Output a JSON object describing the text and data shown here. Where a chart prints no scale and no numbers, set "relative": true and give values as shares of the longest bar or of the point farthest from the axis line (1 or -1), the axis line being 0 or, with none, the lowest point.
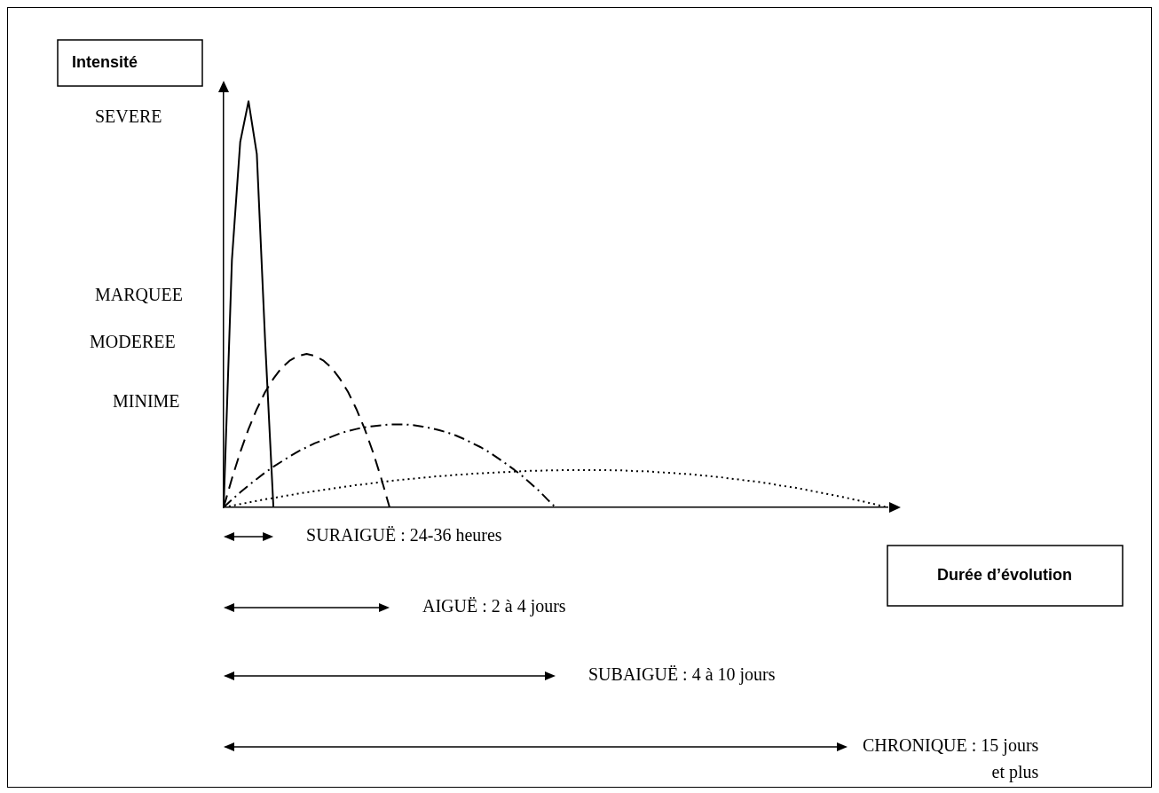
{
  "chart_data": {
    "type": "line",
    "relative": true,
    "categories": [
      null,
      null,
      null,
      null,
      null,
      null,
      null,
      null,
      null,
      null,
      null,
      null,
      null,
      null,
      null,
      null,
      null,
      null,
      null,
      null,
      null,
      null,
      null,
      null,
      null,
      null,
      null,
      null,
      null,
      null,
      null,
      null,
      null,
      null,
      null,
      null,
      null,
      null,
      null,
      null,
      null,
      null,
      null,
      null,
      null,
      null,
      null,
      null,
      null,
      null,
      null,
      null,
      null,
      null,
      null,
      null,
      null,
      null,
      null,
      null,
      null,
      null,
      null,
      null,
      null,
      null,
      null,
      null,
      null,
      null,
      null,
      null,
      null,
      null,
      null,
      null,
      null,
      null,
      null,
      null,
      null
    ],
    "grid": false,
    "legend": false,
    "marker": "none",
    "series": [
      {
        "color": "#000000",
        "line_style": "solid",
        "values": [
          0,
          0.61,
          0.9,
          1,
          0.87,
          0.41,
          0,
          null,
          null,
          null,
          null,
          null,
          null,
          null,
          null,
          null,
          null,
          null,
          null,
          null,
          null,
          null,
          null,
          null,
          null,
          null,
          null,
          null,
          null,
          null,
          null,
          null,
          null,
          null,
          null,
          null,
          null,
          null,
          null,
          null,
          null,
          null,
          null,
          null,
          null,
          null,
          null,
          null,
          null,
          null,
          null,
          null,
          null,
          null,
          null,
          null,
          null,
          null,
          null,
          null,
          null,
          null,
          null,
          null,
          null,
          null,
          null,
          null,
          null,
          null,
          null,
          null,
          null,
          null,
          null,
          null,
          null,
          null,
          null,
          null,
          null
        ]
      },
      {
        "color": "#000000",
        "line_style": "dashed",
        "values": [
          0,
          0.071,
          0.136,
          0.193,
          0.242,
          0.284,
          0.317,
          0.344,
          0.362,
          0.373,
          0.378,
          0.373,
          0.362,
          0.344,
          0.317,
          0.284,
          0.242,
          0.193,
          0.136,
          0.071,
          0,
          null,
          null,
          null,
          null,
          null,
          null,
          null,
          null,
          null,
          null,
          null,
          null,
          null,
          null,
          null,
          null,
          null,
          null,
          null,
          null,
          null,
          null,
          null,
          null,
          null,
          null,
          null,
          null,
          null,
          null,
          null,
          null,
          null,
          null,
          null,
          null,
          null,
          null,
          null,
          null,
          null,
          null,
          null,
          null,
          null,
          null,
          null,
          null,
          null,
          null,
          null,
          null,
          null,
          null,
          null,
          null,
          null,
          null,
          null,
          null
        ]
      },
      {
        "color": "#000000",
        "line_style": "dashdot",
        "values": [
          0,
          0.019,
          0.037,
          0.054,
          0.07,
          0.086,
          0.1,
          0.113,
          0.126,
          0.138,
          0.148,
          0.158,
          0.166,
          0.174,
          0.182,
          0.188,
          0.193,
          0.197,
          0.2,
          0.202,
          0.204,
          0.204,
          0.204,
          0.202,
          0.199,
          0.195,
          0.19,
          0.184,
          0.177,
          0.168,
          0.158,
          0.148,
          0.136,
          0.122,
          0.108,
          0.093,
          0.077,
          0.059,
          0.041,
          0.02,
          0,
          null,
          null,
          null,
          null,
          null,
          null,
          null,
          null,
          null,
          null,
          null,
          null,
          null,
          null,
          null,
          null,
          null,
          null,
          null,
          null,
          null,
          null,
          null,
          null,
          null,
          null,
          null,
          null,
          null,
          null,
          null,
          null,
          null,
          null,
          null,
          null,
          null,
          null,
          null,
          null
        ]
      },
      {
        "color": "#000000",
        "line_style": "dotted",
        "values": [
          0,
          0.004,
          0.008,
          0.012,
          0.016,
          0.02,
          0.023,
          0.027,
          0.03,
          0.034,
          0.037,
          0.04,
          0.043,
          0.046,
          0.049,
          0.052,
          0.055,
          0.057,
          0.06,
          0.062,
          0.065,
          0.067,
          0.069,
          0.071,
          0.073,
          0.075,
          0.077,
          0.078,
          0.08,
          0.081,
          0.083,
          0.084,
          0.085,
          0.086,
          0.087,
          0.088,
          0.089,
          0.09,
          0.09,
          0.091,
          0.091,
          0.092,
          0.092,
          0.092,
          0.092,
          0.092,
          0.092,
          0.091,
          0.091,
          0.09,
          0.089,
          0.089,
          0.087,
          0.086,
          0.085,
          0.083,
          0.082,
          0.08,
          0.078,
          0.076,
          0.074,
          0.071,
          0.069,
          0.066,
          0.064,
          0.061,
          0.058,
          0.054,
          0.051,
          0.048,
          0.044,
          0.04,
          0.036,
          0.032,
          0.028,
          0.024,
          0.019,
          0.015,
          0.01,
          0.005,
          0
        ]
      }
    ],
    "annotations": [
      "SURAIGUË : 24-36 heures",
      "AIGUË : 2 à 4 jours",
      "SUBAIGUË : 4 à 10 jours",
      "CHRONIQUE : 15 jours\net plus",
      "SEVERE",
      "MARQUEE",
      "MODEREE",
      "MINIME",
      "Intensité",
      "Durée d’évolution"
    ]
  }
}
